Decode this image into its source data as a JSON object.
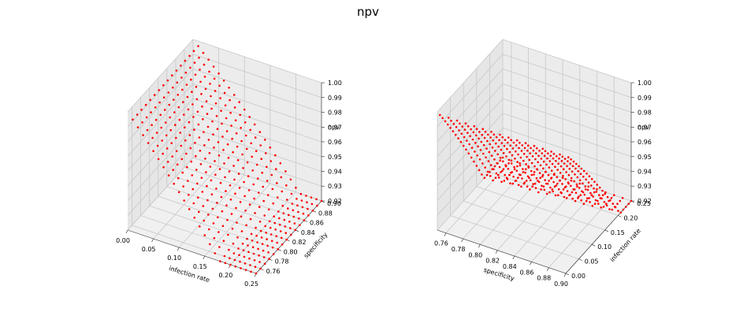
{
  "figure": {
    "suptitle": "npv"
  },
  "chart_data": [
    {
      "type": "scatter3d",
      "marker_color": "#ff0000",
      "x": {
        "label": "infection rate",
        "ticks": [
          "0.00",
          "0.05",
          "0.10",
          "0.15",
          "0.20",
          "0.25"
        ],
        "range": [
          0.0,
          0.25
        ]
      },
      "y": {
        "label": "specificity",
        "ticks": [
          "0.76",
          "0.78",
          "0.80",
          "0.82",
          "0.84",
          "0.86",
          "0.88",
          "0.90"
        ],
        "range": [
          0.75,
          0.9
        ]
      },
      "z": {
        "label": "npv",
        "ticks": [
          "0.92",
          "0.93",
          "0.94",
          "0.95",
          "0.96",
          "0.97",
          "0.98",
          "0.99",
          "1.00"
        ],
        "range": [
          0.92,
          1.0
        ]
      },
      "grid": true,
      "surface": {
        "description": "npv grid over infection rate 0.01–0.25 and specificity 0.75–0.90",
        "infection_rate": [
          0.01,
          0.25
        ],
        "specificity": [
          0.75,
          0.9
        ],
        "npv_range": [
          0.92,
          1.0
        ]
      }
    },
    {
      "type": "scatter3d",
      "marker_color": "#ff0000",
      "x": {
        "label": "specificity",
        "ticks": [
          "0.76",
          "0.78",
          "0.80",
          "0.82",
          "0.84",
          "0.86",
          "0.88",
          "0.90"
        ],
        "range": [
          0.75,
          0.9
        ]
      },
      "y": {
        "label": "infection rate",
        "ticks": [
          "0.00",
          "0.05",
          "0.10",
          "0.15",
          "0.20",
          "0.25"
        ],
        "range": [
          0.0,
          0.25
        ]
      },
      "z": {
        "label": "npv",
        "ticks": [
          "0.92",
          "0.93",
          "0.94",
          "0.95",
          "0.96",
          "0.97",
          "0.98",
          "0.99",
          "1.00"
        ],
        "range": [
          0.92,
          1.0
        ]
      },
      "grid": true,
      "surface": {
        "description": "same npv grid viewed with specificity on the front axis",
        "infection_rate": [
          0.01,
          0.25
        ],
        "specificity": [
          0.75,
          0.9
        ],
        "npv_range": [
          0.92,
          1.0
        ]
      }
    }
  ]
}
